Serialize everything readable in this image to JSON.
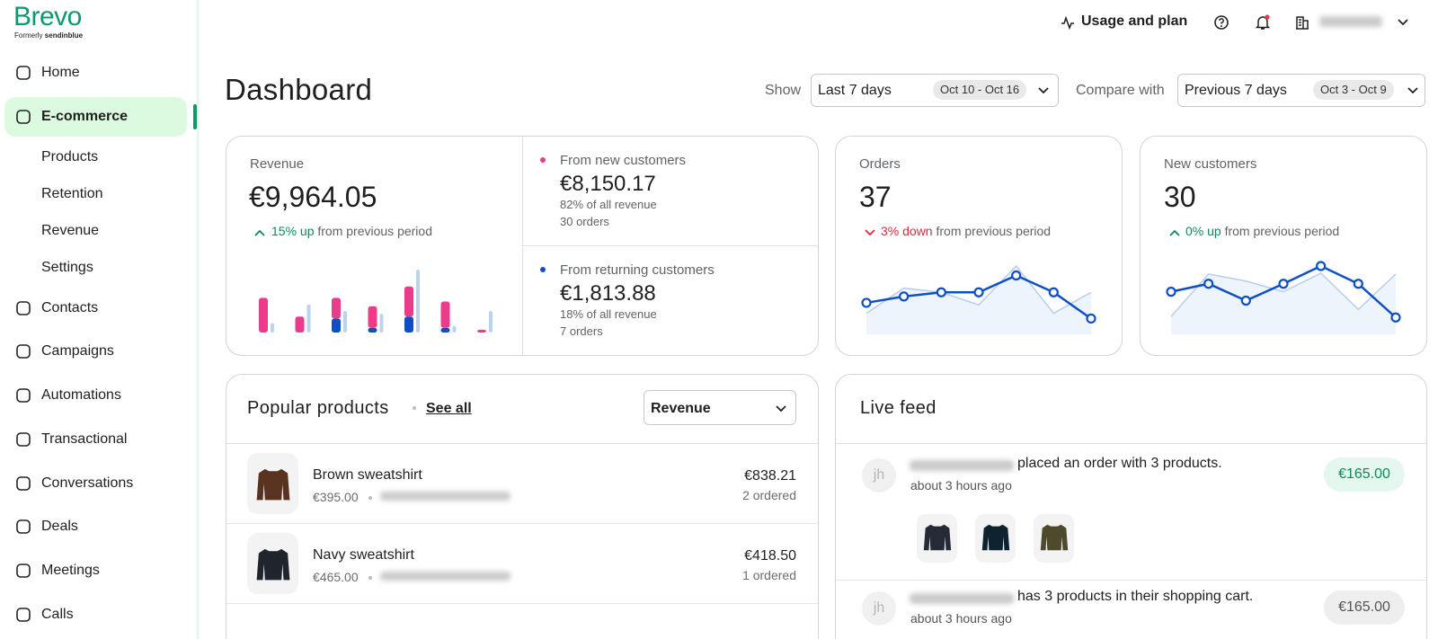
{
  "brand": {
    "name": "Brevo",
    "formerly": "Formerly",
    "former_name": "sendinblue"
  },
  "nav": [
    {
      "label": "Home"
    },
    {
      "label": "E-commerce",
      "active": true,
      "children": [
        "Products",
        "Retention",
        "Revenue",
        "Settings"
      ]
    },
    {
      "label": "Contacts"
    },
    {
      "label": "Campaigns"
    },
    {
      "label": "Automations"
    },
    {
      "label": "Transactional"
    },
    {
      "label": "Conversations"
    },
    {
      "label": "Deals"
    },
    {
      "label": "Meetings"
    },
    {
      "label": "Calls"
    }
  ],
  "topbar": {
    "usage": "Usage and plan"
  },
  "header": {
    "title": "Dashboard",
    "show_label": "Show",
    "period": "Last 7 days",
    "period_range": "Oct 10 - Oct 16",
    "compare_label": "Compare with",
    "compare_period": "Previous 7 days",
    "compare_range": "Oct 3 - Oct 9"
  },
  "revenue": {
    "label": "Revenue",
    "value": "€9,964.05",
    "change": "15% up",
    "change_note": "from previous period",
    "chart": {
      "new_customers": [
        37,
        17,
        22,
        23,
        32,
        28,
        3
      ],
      "returning_customers": [
        0,
        0,
        15,
        5,
        17,
        5,
        0
      ],
      "previous_period": [
        10,
        30,
        23,
        20,
        67,
        7,
        23
      ]
    },
    "segments": [
      {
        "label": "From new customers",
        "value": "€8,150.17",
        "share": "82% of all revenue",
        "orders": "30 orders"
      },
      {
        "label": "From returning customers",
        "value": "€1,813.88",
        "share": "18% of all revenue",
        "orders": "7 orders"
      }
    ]
  },
  "kpis": [
    {
      "label": "Orders",
      "value": "37",
      "change": "3% down",
      "direction": "down",
      "change_note": "from previous period",
      "current": [
        30,
        36,
        40,
        40,
        56,
        40,
        15
      ],
      "previous": [
        20,
        44,
        40,
        28,
        65,
        20,
        40
      ]
    },
    {
      "label": "New customers",
      "value": "30",
      "change": "0% up",
      "direction": "up",
      "change_note": "from previous period",
      "current": [
        48,
        57,
        38,
        57,
        77,
        57,
        19
      ],
      "previous": [
        20,
        68,
        60,
        48,
        69,
        28,
        68
      ]
    }
  ],
  "popular_products": {
    "title": "Popular products",
    "see_all": "See all",
    "sort": "Revenue",
    "items": [
      {
        "name": "Brown sweatshirt",
        "price": "€395.00",
        "revenue": "€838.21",
        "ordered": "2 ordered"
      },
      {
        "name": "Navy sweatshirt",
        "price": "€465.00",
        "revenue": "€418.50",
        "ordered": "1 ordered"
      }
    ]
  },
  "live_feed": {
    "title": "Live feed",
    "events": [
      {
        "initials": "jh",
        "text": "placed an order with 3 products.",
        "time": "about 3 hours ago",
        "amount": "€165.00"
      },
      {
        "initials": "jh",
        "text": "has 3 products in their shopping cart.",
        "time": "about 3 hours ago",
        "amount": "€165.00"
      }
    ]
  }
}
